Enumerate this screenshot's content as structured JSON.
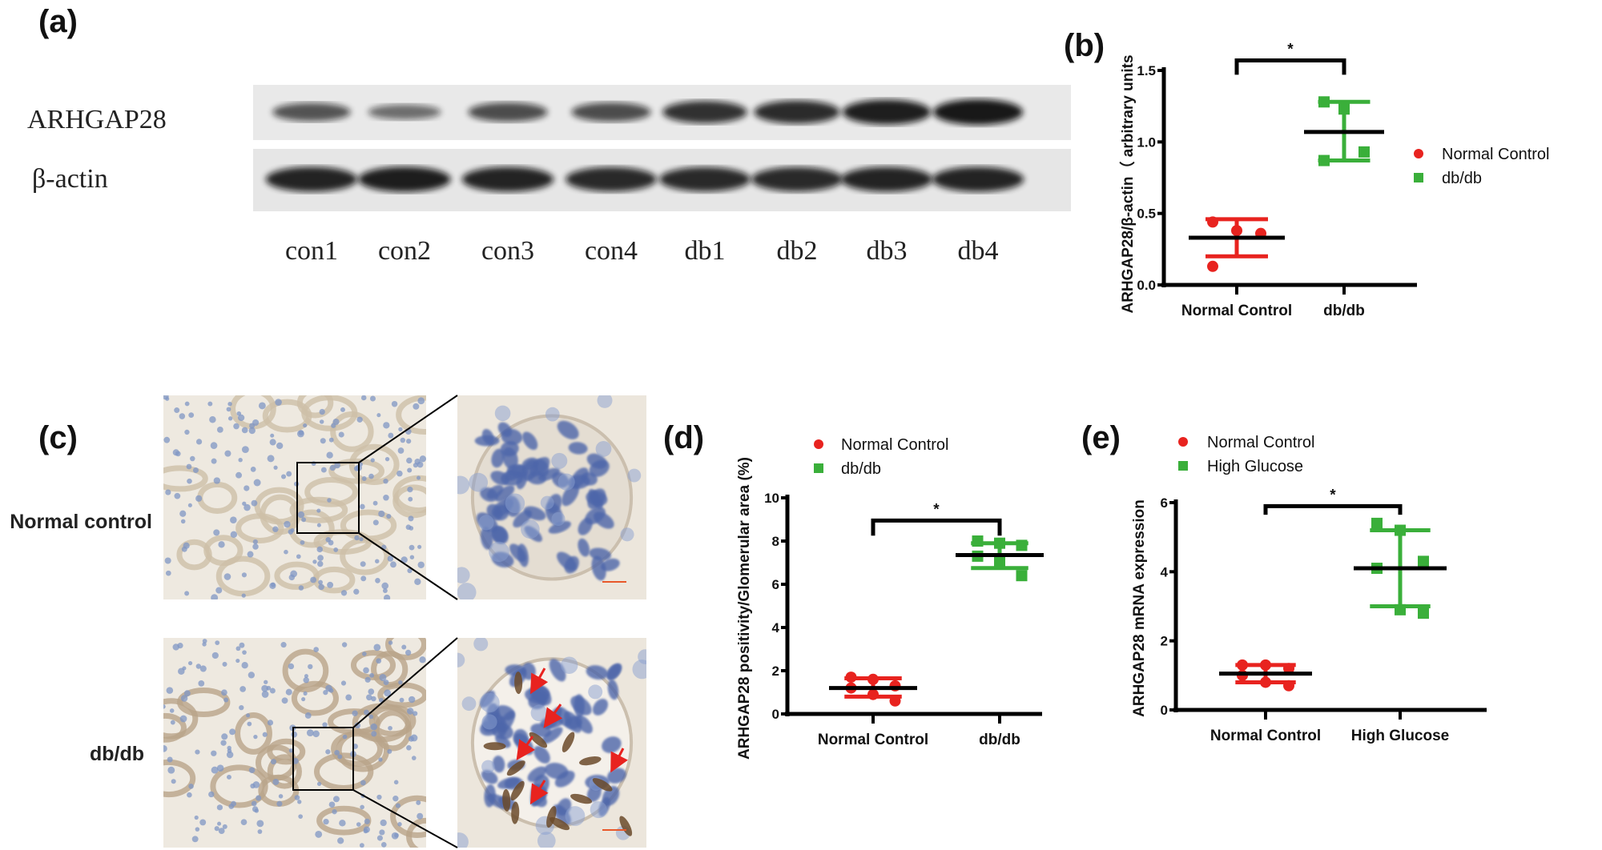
{
  "panel_labels": {
    "a": "(a)",
    "b": "(b)",
    "c": "(c)",
    "d": "(d)",
    "e": "(e)"
  },
  "western_blot": {
    "rows": [
      "ARHGAP28",
      "β-actin"
    ],
    "lanes": [
      "con1",
      "con2",
      "con3",
      "con4",
      "db1",
      "db2",
      "db3",
      "db4"
    ],
    "arhgap28_band_intensity": [
      0.55,
      0.35,
      0.6,
      0.6,
      0.8,
      0.85,
      0.95,
      1.0
    ],
    "actin_band_intensity": [
      0.9,
      0.95,
      0.9,
      0.85,
      0.85,
      0.85,
      0.9,
      0.9
    ]
  },
  "histology": {
    "rows": [
      "Normal control",
      "db/db"
    ]
  },
  "colors": {
    "normal": "#e8231f",
    "treated": "#3aaf3a",
    "mean": "#000000"
  },
  "chart_data": [
    {
      "id": "b",
      "type": "scatter",
      "ylabel": "ARHGAP28/β-actin（ arbitrary units",
      "categories": [
        "Normal Control",
        "db/db"
      ],
      "yticks": [
        "0.0",
        "0.5",
        "1.0",
        "1.5"
      ],
      "ylim": [
        0,
        1.5
      ],
      "legend": [
        "Normal Control",
        "db/db"
      ],
      "legend_position": "right",
      "significance": "*",
      "series": [
        {
          "name": "Normal Control",
          "marker": "circle",
          "values": [
            0.44,
            0.38,
            0.36,
            0.13
          ],
          "mean": 0.33,
          "err_low": 0.2,
          "err_high": 0.46
        },
        {
          "name": "db/db",
          "marker": "square",
          "values": [
            1.28,
            1.23,
            0.93,
            0.87
          ],
          "mean": 1.07,
          "err_low": 0.87,
          "err_high": 1.28
        }
      ]
    },
    {
      "id": "d",
      "type": "scatter",
      "ylabel": "ARHGAP28 positivity/Glomerular area (%)",
      "categories": [
        "Normal Control",
        "db/db"
      ],
      "yticks": [
        "0",
        "2",
        "4",
        "6",
        "8",
        "10"
      ],
      "ylim": [
        0,
        10
      ],
      "legend": [
        "Normal Control",
        "db/db"
      ],
      "legend_position": "top",
      "significance": "*",
      "series": [
        {
          "name": "Normal Control",
          "marker": "circle",
          "values": [
            1.7,
            1.6,
            1.3,
            1.2,
            0.9,
            0.6
          ],
          "mean": 1.2,
          "err_low": 0.8,
          "err_high": 1.65
        },
        {
          "name": "db/db",
          "marker": "square",
          "values": [
            8.0,
            7.9,
            7.8,
            7.3,
            7.0,
            6.4
          ],
          "mean": 7.35,
          "err_low": 6.75,
          "err_high": 7.9
        }
      ]
    },
    {
      "id": "e",
      "type": "scatter",
      "ylabel": "ARHGAP28 mRNA expression",
      "categories": [
        "Normal Control",
        "High Glucose"
      ],
      "yticks": [
        "0",
        "2",
        "4",
        "6"
      ],
      "ylim": [
        0,
        6
      ],
      "legend": [
        "Normal Control",
        "High Glucose"
      ],
      "legend_position": "top",
      "significance": "*",
      "series": [
        {
          "name": "Normal Control",
          "marker": "circle",
          "values": [
            1.3,
            1.3,
            1.2,
            1.0,
            0.8,
            0.7
          ],
          "mean": 1.05,
          "err_low": 0.8,
          "err_high": 1.3
        },
        {
          "name": "High Glucose",
          "marker": "square",
          "values": [
            5.4,
            5.2,
            4.3,
            4.1,
            2.9,
            2.8
          ],
          "mean": 4.1,
          "err_low": 3.0,
          "err_high": 5.2
        }
      ]
    }
  ]
}
